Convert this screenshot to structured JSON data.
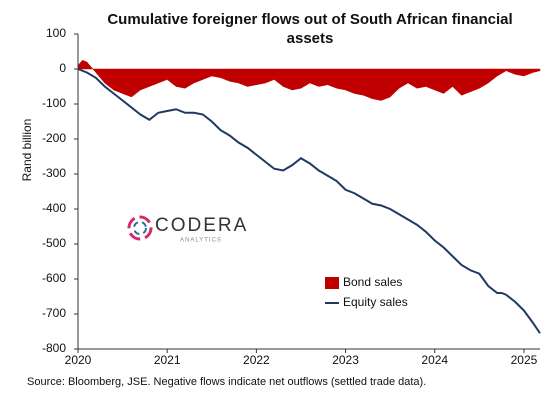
{
  "chart_data": {
    "type": "line-area",
    "title": "Cumulative foreigner flows out of South African financial assets",
    "ylabel": "Rand billion",
    "source": "Source: Bloomberg, JSE. Negative flows indicate net outflows (settled trade data).",
    "xlim": [
      2020,
      2025.18
    ],
    "xticks": [
      2020,
      2021,
      2022,
      2023,
      2024,
      2025
    ],
    "ylim": [
      -800,
      100
    ],
    "yticks": [
      -800,
      -700,
      -600,
      -500,
      -400,
      -300,
      -200,
      -100,
      0,
      100
    ],
    "grid": false,
    "legend": "lower right",
    "series": [
      {
        "name": "Bond sales",
        "kind": "area",
        "color": "#c00000",
        "x": [
          2020,
          2020.05,
          2020.1,
          2020.2,
          2020.3,
          2020.4,
          2020.5,
          2020.6,
          2020.7,
          2020.8,
          2020.9,
          2021,
          2021.1,
          2021.2,
          2021.3,
          2021.4,
          2021.5,
          2021.6,
          2021.7,
          2021.8,
          2021.9,
          2022,
          2022.1,
          2022.2,
          2022.3,
          2022.4,
          2022.5,
          2022.6,
          2022.7,
          2022.8,
          2022.9,
          2023,
          2023.1,
          2023.2,
          2023.3,
          2023.4,
          2023.5,
          2023.6,
          2023.7,
          2023.8,
          2023.9,
          2024,
          2024.1,
          2024.2,
          2024.3,
          2024.4,
          2024.5,
          2024.6,
          2024.7,
          2024.8,
          2024.9,
          2025,
          2025.1,
          2025.18
        ],
        "values": [
          10,
          25,
          20,
          -10,
          -40,
          -60,
          -70,
          -80,
          -60,
          -50,
          -40,
          -30,
          -50,
          -55,
          -40,
          -30,
          -20,
          -25,
          -35,
          -40,
          -50,
          -45,
          -40,
          -30,
          -50,
          -60,
          -55,
          -40,
          -50,
          -45,
          -55,
          -60,
          -70,
          -75,
          -85,
          -90,
          -80,
          -55,
          -40,
          -55,
          -50,
          -60,
          -70,
          -50,
          -75,
          -65,
          -55,
          -40,
          -20,
          -5,
          -15,
          -20,
          -10,
          -5
        ]
      },
      {
        "name": "Equity sales",
        "kind": "line",
        "color": "#1f3864",
        "x": [
          2020,
          2020.1,
          2020.2,
          2020.3,
          2020.4,
          2020.5,
          2020.6,
          2020.7,
          2020.8,
          2020.9,
          2021,
          2021.1,
          2021.2,
          2021.3,
          2021.4,
          2021.5,
          2021.6,
          2021.7,
          2021.8,
          2021.9,
          2022,
          2022.1,
          2022.2,
          2022.3,
          2022.4,
          2022.5,
          2022.6,
          2022.7,
          2022.8,
          2022.9,
          2023,
          2023.1,
          2023.2,
          2023.3,
          2023.4,
          2023.5,
          2023.6,
          2023.7,
          2023.8,
          2023.9,
          2024,
          2024.1,
          2024.2,
          2024.3,
          2024.4,
          2024.5,
          2024.6,
          2024.7,
          2024.75,
          2024.8,
          2024.9,
          2025,
          2025.1,
          2025.18
        ],
        "values": [
          0,
          -10,
          -25,
          -50,
          -70,
          -90,
          -110,
          -130,
          -145,
          -125,
          -120,
          -115,
          -125,
          -125,
          -130,
          -150,
          -175,
          -190,
          -210,
          -225,
          -245,
          -265,
          -285,
          -290,
          -275,
          -255,
          -270,
          -290,
          -305,
          -320,
          -345,
          -355,
          -370,
          -385,
          -390,
          -400,
          -415,
          -430,
          -445,
          -465,
          -490,
          -510,
          -535,
          -560,
          -575,
          -585,
          -620,
          -640,
          -640,
          -645,
          -665,
          -690,
          -725,
          -755
        ]
      }
    ]
  },
  "logo": {
    "name": "CODERA",
    "tagline": "ANALYTICS"
  }
}
